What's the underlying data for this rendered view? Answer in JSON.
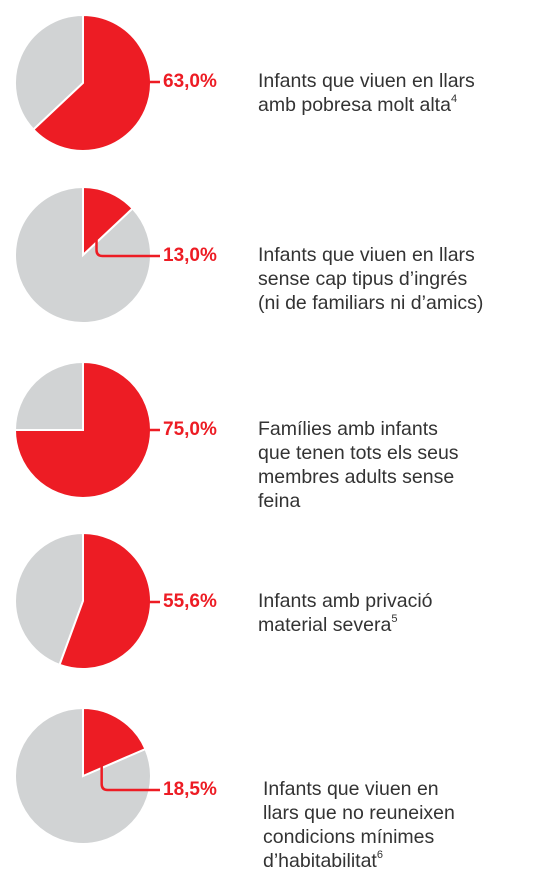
{
  "chart_data": [
    {
      "type": "pie",
      "values": [
        63.0
      ],
      "value_labels": [
        "63,0%"
      ],
      "colors": [
        "#ed1c24",
        "#d1d3d4"
      ],
      "label_lines": [
        "Infants que viuen en llars",
        "amb pobresa molt alta"
      ],
      "footnote": "4"
    },
    {
      "type": "pie",
      "values": [
        13.0
      ],
      "value_labels": [
        "13,0%"
      ],
      "colors": [
        "#ed1c24",
        "#d1d3d4"
      ],
      "label_lines": [
        "Infants que viuen en llars",
        "sense cap tipus d’ingrés",
        "(ni de familiars ni d’amics)"
      ]
    },
    {
      "type": "pie",
      "values": [
        75.0
      ],
      "value_labels": [
        "75,0%"
      ],
      "colors": [
        "#ed1c24",
        "#d1d3d4"
      ],
      "label_lines": [
        "Famílies amb infants",
        "que tenen tots  els seus",
        "membres adults sense",
        "feina"
      ]
    },
    {
      "type": "pie",
      "values": [
        55.6
      ],
      "value_labels": [
        "55,6%"
      ],
      "colors": [
        "#ed1c24",
        "#d1d3d4"
      ],
      "label_lines": [
        "Infants amb privació",
        "material severa"
      ],
      "footnote": "5"
    },
    {
      "type": "pie",
      "values": [
        18.5
      ],
      "value_labels": [
        "18,5%"
      ],
      "colors": [
        "#ed1c24",
        "#d1d3d4"
      ],
      "label_lines": [
        "Infants que viuen en",
        "llars que no reuneixen",
        "condicions mínimes",
        "d’habitabilitat"
      ],
      "footnote": "6"
    }
  ]
}
